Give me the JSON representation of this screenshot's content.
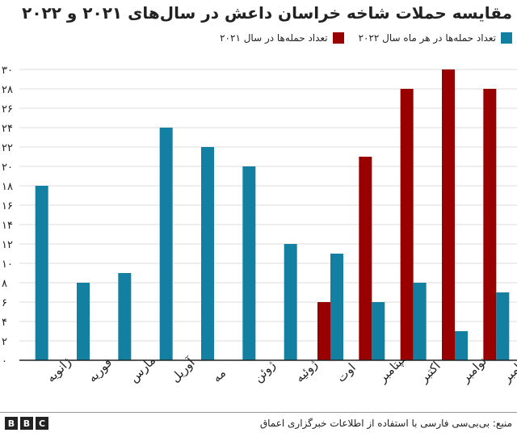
{
  "chart_data": {
    "type": "bar",
    "title": "مقایسه حملات شاخه خراسان داعش در سال‌های ۲۰۲۱ و ۲۰۲۲",
    "categories": [
      "ژانویه",
      "فوریه",
      "مارس",
      "آوریل",
      "مه",
      "ژوئن",
      "ژوئیه",
      "اوت",
      "سپتامبر",
      "اکتبر",
      "نوامبر",
      "دسامبر"
    ],
    "series": [
      {
        "name": "تعداد حمله‌ها در هر ماه سال ۲۰۲۲",
        "color": "#1380a1",
        "values": [
          18,
          8,
          9,
          24,
          22,
          20,
          12,
          11,
          6,
          8,
          3,
          7
        ]
      },
      {
        "name": "تعداد حمله‌ها در سال ۲۰۲۱",
        "color": "#990000",
        "values": [
          0,
          0,
          0,
          0,
          0,
          0,
          0,
          6,
          21,
          28,
          30,
          28
        ]
      }
    ],
    "ylim": [
      0,
      30
    ],
    "yticks": [
      "۰",
      "۲",
      "۴",
      "۶",
      "۸",
      "۱۰",
      "۱۲",
      "۱۴",
      "۱۶",
      "۱۸",
      "۲۰",
      "۲۲",
      "۲۴",
      "۲۶",
      "۲۸",
      "۳۰"
    ],
    "xlabel": "",
    "ylabel": "",
    "grid": true,
    "legend": "top-right"
  },
  "footer": {
    "source": "منبع: بی‌بی‌سی فارسی با استفاده از اطلاعات خبرگزاری اعماق",
    "logo": [
      "B",
      "B",
      "C"
    ]
  }
}
